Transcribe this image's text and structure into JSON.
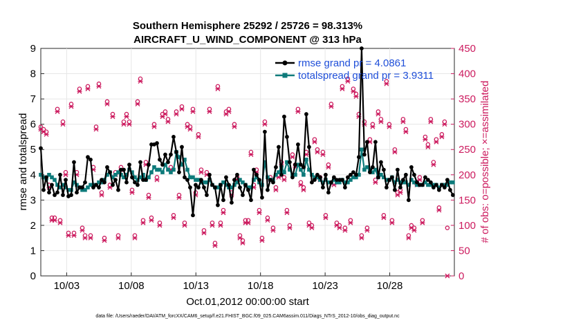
{
  "chart_data": {
    "type": "line",
    "title_line1": "Southern Hemisphere 25292 / 25726 = 98.313%",
    "title_line2": "AIRCRAFT_U_WIND_COMPONENT @ 313 hPa",
    "ylabel": "rmse and totalspread",
    "y2label": "# of obs: o=possible; ×=assimilated",
    "xlabel": "Oct.01,2012 00:00:00 start",
    "footnote": "data file: /Users/raeder/DAI/ATM_forcXX/CAM6_setup/f.e21.FHIST_BGC.f09_025.CAM6assim.011/Diags_NTrS_2012-10/obs_diag_output.nc",
    "ylim": [
      0,
      9
    ],
    "y2lim": [
      0,
      450
    ],
    "xlim": [
      1.0,
      33.0
    ],
    "yticks": [
      "0",
      "1",
      "2",
      "3",
      "4",
      "5",
      "6",
      "7",
      "8",
      "9"
    ],
    "y2ticks": [
      "0",
      "50",
      "100",
      "150",
      "200",
      "250",
      "300",
      "350",
      "400",
      "450"
    ],
    "xticks": [
      {
        "value": 3.0,
        "label": "10/03"
      },
      {
        "value": 8.0,
        "label": "10/08"
      },
      {
        "value": 13.0,
        "label": "10/13"
      },
      {
        "value": 18.0,
        "label": "10/18"
      },
      {
        "value": 23.0,
        "label": "10/23"
      },
      {
        "value": 28.0,
        "label": "10/28"
      }
    ],
    "series": [
      {
        "name": "rmse",
        "legend": "rmse grand pr = 4.0861",
        "color": "#000000",
        "axis": "left",
        "values": [
          5.05,
          3.4,
          3.9,
          3.3,
          3.6,
          3.2,
          3.3,
          4.0,
          3.2,
          3.8,
          3.15,
          3.2,
          4.5,
          3.3,
          3.5,
          3.5,
          3.7,
          4.7,
          4.6,
          3.5,
          3.6,
          3.5,
          3.8,
          3.7,
          4.3,
          4.1,
          3.6,
          3.8,
          3.4,
          4.2,
          4.2,
          3.7,
          4.4,
          3.9,
          3.7,
          3.6,
          4.5,
          3.8,
          3.8,
          4.4,
          5.2,
          5.2,
          5.25,
          4.6,
          4.4,
          4.8,
          4.5,
          4.8,
          5.5,
          4.9,
          4.1,
          5.1,
          3.9,
          3.8,
          3.5,
          2.4,
          3.6,
          3.5,
          3.8,
          3.5,
          3.2,
          4.0,
          3.6,
          3.5,
          2.8,
          3.6,
          3.0,
          3.9,
          3.6,
          2.9,
          3.8,
          4.0,
          3.5,
          3.2,
          3.6,
          3.4,
          3.0,
          4.2,
          4.0,
          3.8,
          3.1,
          5.7,
          3.4,
          3.8,
          3.7,
          4.3,
          5.1,
          4.0,
          6.3,
          5.5,
          4.5,
          3.9,
          4.4,
          5.2,
          4.4,
          4.3,
          6.4,
          5.1,
          3.7,
          3.8,
          4.0,
          3.9,
          3.5,
          4.0,
          3.3,
          3.7,
          3.9,
          3.8,
          3.8,
          3.8,
          3.5,
          3.9,
          4.0,
          4.1,
          4.0,
          4.7,
          9.0,
          4.8,
          5.3,
          4.1,
          4.3,
          5.3,
          3.9,
          4.5,
          4.2,
          3.5,
          3.8,
          3.9,
          3.4,
          4.2,
          3.5,
          3.8,
          4.0,
          3.0,
          4.3,
          4.0,
          3.7,
          3.6,
          3.6,
          3.9,
          3.8,
          3.7,
          3.5,
          3.6,
          3.4,
          3.6,
          3.5,
          3.8,
          3.4,
          3.2
        ]
      },
      {
        "name": "totalspread",
        "legend": "totalspread grand pr = 3.9311",
        "color": "#0d7a7a",
        "axis": "left",
        "values": [
          4.0,
          3.9,
          3.85,
          4.0,
          3.9,
          3.8,
          3.6,
          3.5,
          3.6,
          3.5,
          3.4,
          3.4,
          3.7,
          3.6,
          3.5,
          3.4,
          3.4,
          3.5,
          3.6,
          3.6,
          3.6,
          3.7,
          3.7,
          3.8,
          4.0,
          4.1,
          3.9,
          4.0,
          4.1,
          4.0,
          3.9,
          4.0,
          4.2,
          4.1,
          3.9,
          3.8,
          3.9,
          4.0,
          3.8,
          3.9,
          4.1,
          4.3,
          4.2,
          4.2,
          4.1,
          4.4,
          4.2,
          4.1,
          4.2,
          4.9,
          4.7,
          4.4,
          4.6,
          4.2,
          3.9,
          3.9,
          3.8,
          3.8,
          3.7,
          3.7,
          3.7,
          3.8,
          3.6,
          3.5,
          3.5,
          3.6,
          3.7,
          3.6,
          3.5,
          3.5,
          3.6,
          3.7,
          3.8,
          3.7,
          3.6,
          3.5,
          3.5,
          3.8,
          3.9,
          3.7,
          3.6,
          4.5,
          3.9,
          3.8,
          3.8,
          4.0,
          4.1,
          4.3,
          4.1,
          4.5,
          4.2,
          4.0,
          4.0,
          4.4,
          4.2,
          4.0,
          4.6,
          4.2,
          4.0,
          3.9,
          3.9,
          3.8,
          3.7,
          3.8,
          3.7,
          3.7,
          3.8,
          3.7,
          3.7,
          3.8,
          3.7,
          3.7,
          3.8,
          3.9,
          3.9,
          4.0,
          5.0,
          4.2,
          4.3,
          4.2,
          4.1,
          4.2,
          3.9,
          4.0,
          3.9,
          3.8,
          3.8,
          3.9,
          3.7,
          3.8,
          3.7,
          3.7,
          3.7,
          3.6,
          3.8,
          3.7,
          3.6,
          3.6,
          3.6,
          3.7,
          3.6,
          3.6,
          3.6,
          3.6,
          3.5,
          3.6,
          3.6,
          3.6,
          3.7,
          3.7
        ]
      },
      {
        "name": "nposs",
        "legend": "",
        "color": "#cc1a5e",
        "axis": "right",
        "marker": "o",
        "values": [
          295,
          290,
          285,
          180,
          115,
          115,
          330,
          110,
          305,
          205,
          85,
          340,
          85,
          205,
          370,
          95,
          80,
          375,
          80,
          215,
          295,
          380,
          165,
          75,
          345,
          180,
          320,
          205,
          80,
          215,
          305,
          320,
          305,
          170,
          80,
          345,
          390,
          110,
          225,
          160,
          115,
          300,
          195,
          105,
          320,
          325,
          310,
          215,
          120,
          325,
          160,
          335,
          105,
          300,
          295,
          330,
          165,
          280,
          210,
          90,
          205,
          330,
          105,
          65,
          375,
          105,
          130,
          325,
          330,
          165,
          300,
          195,
          80,
          70,
          110,
          110,
          245,
          180,
          210,
          130,
          75,
          305,
          115,
          195,
          95,
          175,
          200,
          225,
          195,
          130,
          100,
          240,
          220,
          330,
          185,
          175,
          245,
          105,
          100,
          270,
          250,
          195,
          245,
          120,
          220,
          340,
          185,
          105,
          100,
          375,
          95,
          390,
          110,
          370,
          360,
          320,
          80,
          305,
          95,
          270,
          300,
          190,
          325,
          310,
          120,
          385,
          300,
          110,
          250,
          165,
          170,
          310,
          290,
          80,
          100,
          95,
          185,
          195,
          110,
          275,
          260,
          310,
          225,
          270,
          135,
          280,
          305,
          95
        ]
      },
      {
        "name": "nassim",
        "legend": "",
        "color": "#cc1a5e",
        "axis": "right",
        "marker": "x",
        "values": [
          290,
          285,
          280,
          175,
          110,
          110,
          325,
          105,
          300,
          200,
          80,
          335,
          80,
          200,
          365,
          90,
          75,
          370,
          75,
          210,
          290,
          375,
          160,
          70,
          340,
          175,
          315,
          200,
          75,
          210,
          300,
          315,
          300,
          165,
          75,
          340,
          385,
          105,
          220,
          155,
          110,
          295,
          190,
          100,
          315,
          320,
          305,
          210,
          115,
          320,
          155,
          330,
          100,
          295,
          290,
          325,
          160,
          275,
          205,
          85,
          200,
          325,
          100,
          60,
          370,
          100,
          125,
          320,
          325,
          160,
          295,
          190,
          75,
          65,
          105,
          105,
          240,
          175,
          205,
          125,
          70,
          300,
          110,
          190,
          90,
          170,
          195,
          220,
          190,
          125,
          95,
          235,
          215,
          325,
          180,
          170,
          240,
          100,
          95,
          265,
          245,
          190,
          240,
          115,
          215,
          335,
          180,
          100,
          95,
          370,
          90,
          385,
          105,
          365,
          355,
          315,
          75,
          300,
          90,
          265,
          295,
          185,
          320,
          305,
          115,
          380,
          295,
          105,
          245,
          160,
          165,
          305,
          285,
          75,
          95,
          90,
          180,
          190,
          105,
          270,
          255,
          305,
          220,
          265,
          130,
          275,
          300,
          0
        ]
      }
    ],
    "x_start": 1.0,
    "x_step": 0.214
  }
}
